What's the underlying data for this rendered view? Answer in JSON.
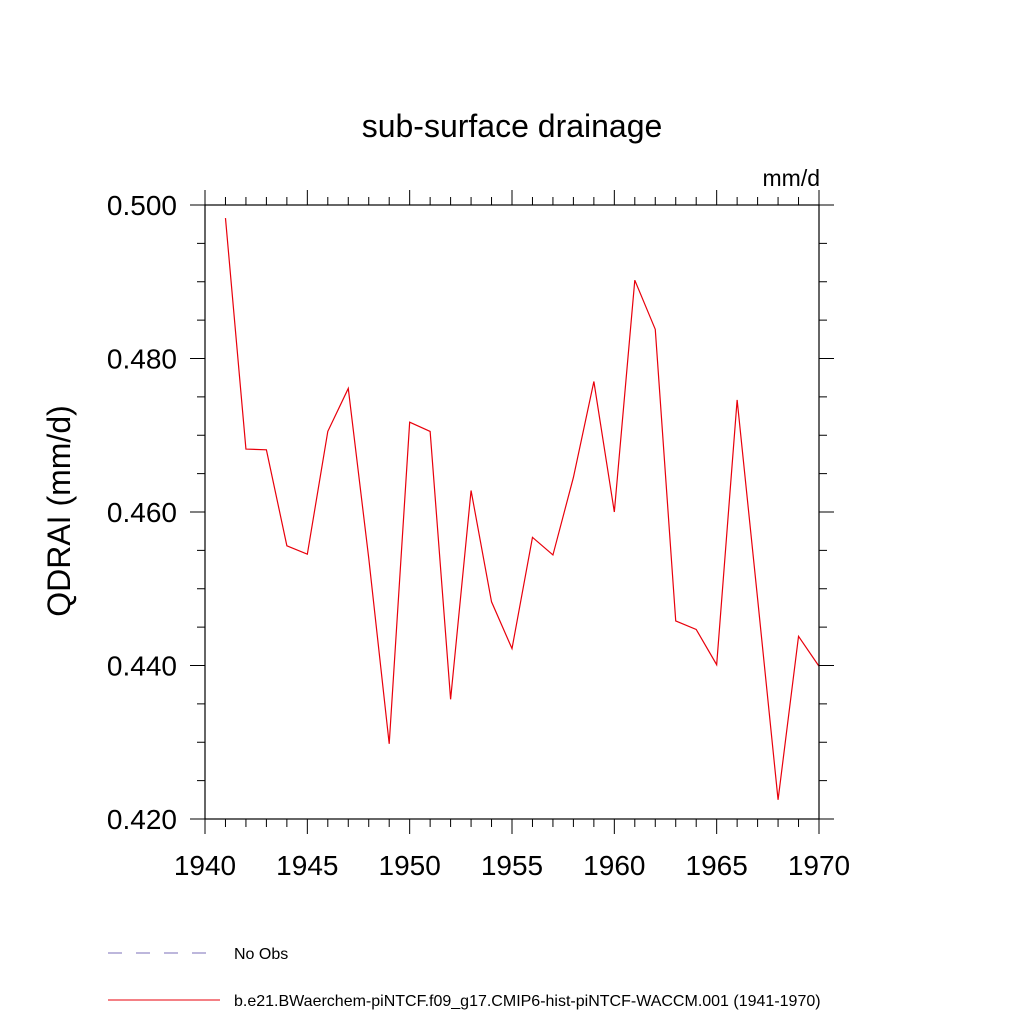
{
  "chart_data": {
    "type": "line",
    "title": "sub-surface drainage",
    "units": "mm/d",
    "ylabel": "QDRAI  (mm/d)",
    "xlabel": "",
    "xlim": [
      1940,
      1970
    ],
    "ylim": [
      0.42,
      0.5
    ],
    "xticks": [
      1940,
      1945,
      1950,
      1955,
      1960,
      1965,
      1970
    ],
    "xtick_labels": [
      "1940",
      "1945",
      "1950",
      "1955",
      "1960",
      "1965",
      "1970"
    ],
    "yticks": [
      0.42,
      0.44,
      0.46,
      0.48,
      0.5
    ],
    "ytick_labels": [
      "0.420",
      "0.440",
      "0.460",
      "0.480",
      "0.500"
    ],
    "x": [
      1941,
      1942,
      1943,
      1944,
      1945,
      1946,
      1947,
      1948,
      1949,
      1950,
      1951,
      1952,
      1953,
      1954,
      1955,
      1956,
      1957,
      1958,
      1959,
      1960,
      1961,
      1962,
      1963,
      1964,
      1965,
      1966,
      1967,
      1968,
      1969,
      1970
    ],
    "series": [
      {
        "name": "b.e21.BWaerchem-piNTCF.f09_g17.CMIP6-hist-piNTCF-WACCM.001 (1941-1970)",
        "color": "#e8000b",
        "dash": "solid",
        "values": [
          0.4983,
          0.4682,
          0.4681,
          0.4556,
          0.4545,
          0.4705,
          0.4761,
          0.454,
          0.4298,
          0.4717,
          0.4705,
          0.4356,
          0.4628,
          0.4483,
          0.4422,
          0.4567,
          0.4544,
          0.4645,
          0.477,
          0.46,
          0.4902,
          0.4838,
          0.4458,
          0.4447,
          0.4401,
          0.4746,
          0.4487,
          0.4225,
          0.4438,
          0.4399
        ]
      }
    ],
    "legend": {
      "placement": "bottom-left",
      "entries": [
        {
          "label": "No Obs",
          "color": "#7b6fb8",
          "dash": "dashed"
        },
        {
          "label": "b.e21.BWaerchem-piNTCF.f09_g17.CMIP6-hist-piNTCF-WACCM.001 (1941-1970)",
          "color": "#e8000b",
          "dash": "solid"
        }
      ]
    },
    "grid": false
  }
}
